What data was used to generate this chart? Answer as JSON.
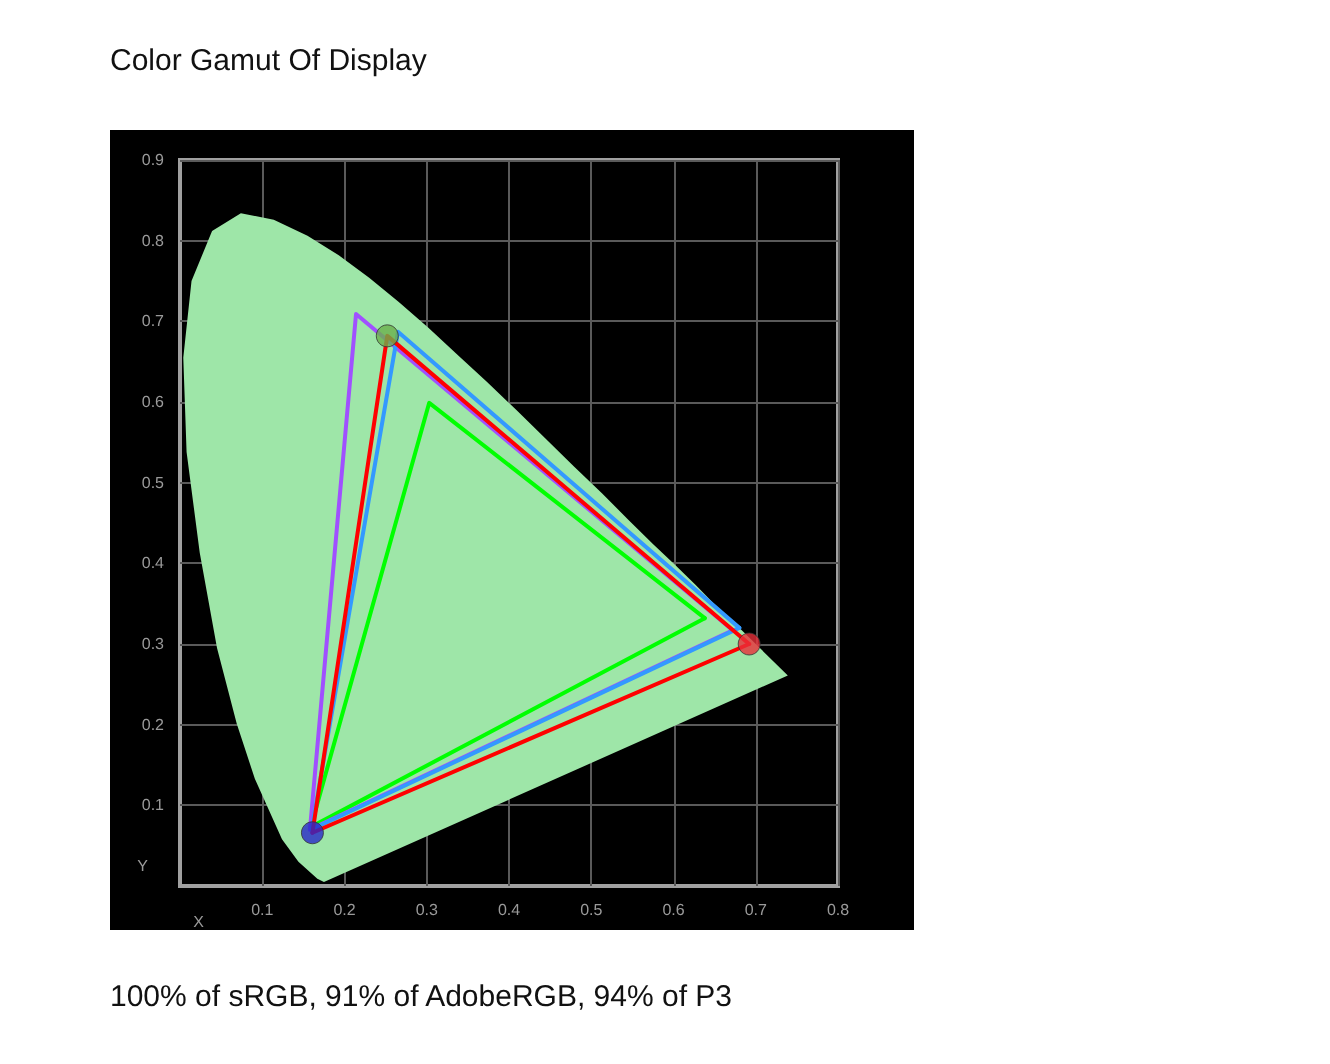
{
  "chart_data": {
    "type": "line",
    "title": "Color Gamut Of Display",
    "xlabel": "X",
    "ylabel": "Y",
    "annotations": [
      "100% of sRGB, 91% of AdobeRGB, 94% of P3"
    ],
    "xlim": [
      0,
      0.8
    ],
    "xticks": [
      0.1,
      0.2,
      0.3,
      0.4,
      0.5,
      0.6,
      0.7,
      0.8
    ],
    "ylim": [
      0,
      0.9
    ],
    "yticks": [
      0.1,
      0.2,
      0.3,
      0.4,
      0.5,
      0.6,
      0.7,
      0.8,
      0.9
    ],
    "grid": true,
    "marker": "none",
    "line_style": "solid",
    "series": [
      {
        "type": "area",
        "color": "#9ee6a8",
        "x": [
          0.175,
          0.167,
          0.144,
          0.124,
          0.091,
          0.069,
          0.045,
          0.024,
          0.008,
          0.004,
          0.014,
          0.039,
          0.074,
          0.114,
          0.155,
          0.193,
          0.23,
          0.266,
          0.302,
          0.337,
          0.373,
          0.409,
          0.444,
          0.479,
          0.513,
          0.545,
          0.575,
          0.603,
          0.627,
          0.648,
          0.666,
          0.692,
          0.739,
          0.175
        ],
        "values": [
          0.005,
          0.009,
          0.03,
          0.058,
          0.133,
          0.201,
          0.295,
          0.413,
          0.538,
          0.655,
          0.75,
          0.812,
          0.834,
          0.826,
          0.806,
          0.782,
          0.754,
          0.724,
          0.692,
          0.659,
          0.625,
          0.59,
          0.555,
          0.52,
          0.487,
          0.454,
          0.424,
          0.397,
          0.373,
          0.351,
          0.334,
          0.308,
          0.261,
          0.005
        ]
      },
      {
        "color": "#00ff00",
        "x": [
          0.159,
          0.303,
          0.638
        ],
        "values": [
          0.073,
          0.599,
          0.332
        ]
      },
      {
        "color": "#00ff00",
        "x": [
          0.159,
          0.638
        ],
        "values": [
          0.073,
          0.332
        ]
      },
      {
        "color": "#a050ff",
        "x": [
          0.158,
          0.214,
          0.672
        ],
        "values": [
          0.07,
          0.709,
          0.317
        ]
      },
      {
        "color": "#a050ff",
        "x": [
          0.158,
          0.672
        ],
        "values": [
          0.07,
          0.317
        ]
      },
      {
        "color": "#3399ff",
        "x": [
          0.16,
          0.265,
          0.68
        ],
        "values": [
          0.07,
          0.687,
          0.32
        ]
      },
      {
        "color": "#3399ff",
        "x": [
          0.16,
          0.68
        ],
        "values": [
          0.07,
          0.32
        ]
      },
      {
        "color": "#ff0000",
        "x": [
          0.161,
          0.252,
          0.692
        ],
        "values": [
          0.066,
          0.682,
          0.3
        ]
      },
      {
        "color": "#ff0000",
        "x": [
          0.161,
          0.692
        ],
        "values": [
          0.066,
          0.3
        ]
      },
      {
        "type": "scatter",
        "marker": "circle",
        "colors": [
          "#6ab04c",
          "#e8303a",
          "#2828c8"
        ],
        "x": [
          0.252,
          0.692,
          0.161
        ],
        "values": [
          0.682,
          0.3,
          0.066
        ]
      }
    ]
  }
}
